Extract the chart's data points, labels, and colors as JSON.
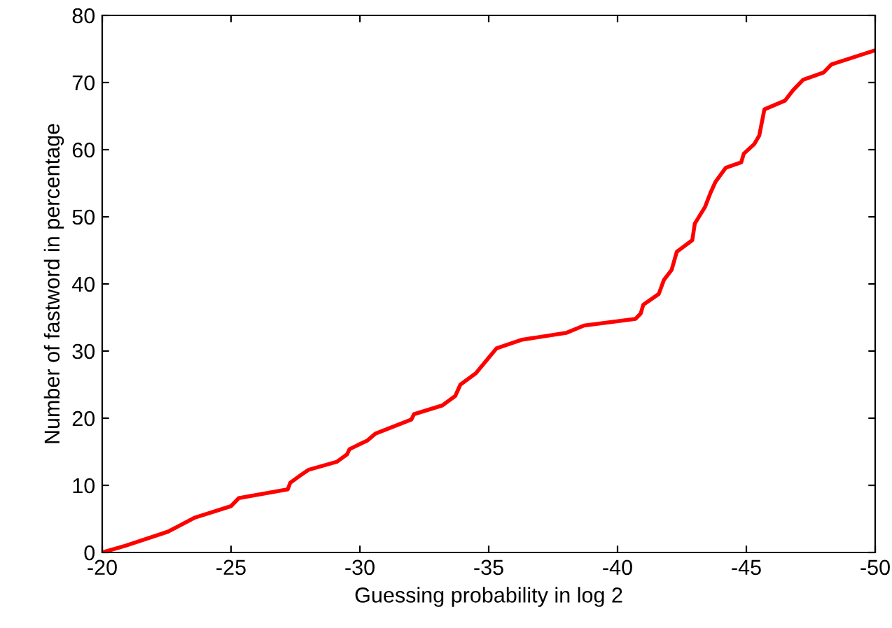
{
  "chart_data": {
    "type": "line",
    "xlabel": "Guessing probability in log 2",
    "ylabel": "Number of fastword in percentage",
    "xlim": [
      -20,
      -50
    ],
    "ylim": [
      0,
      80
    ],
    "xticks": [
      -20,
      -25,
      -30,
      -35,
      -40,
      -45,
      -50
    ],
    "yticks": [
      0,
      10,
      20,
      30,
      40,
      50,
      60,
      70,
      80
    ],
    "grid": false,
    "legend": false,
    "series": [
      {
        "color": "#ff0000",
        "x": [
          -20,
          -20.9,
          -22.55,
          -23.6,
          -25.0,
          -25.3,
          -27.2,
          -27.3,
          -27.7,
          -28.0,
          -29.1,
          -29.5,
          -29.6,
          -30.3,
          -30.6,
          -32.0,
          -32.1,
          -33.2,
          -33.7,
          -33.9,
          -34.5,
          -35.3,
          -36.3,
          -38.0,
          -38.7,
          -40.7,
          -40.9,
          -41.0,
          -41.6,
          -41.8,
          -42.1,
          -42.3,
          -42.9,
          -43.0,
          -43.4,
          -43.6,
          -43.8,
          -44.2,
          -44.8,
          -44.9,
          -45.3,
          -45.5,
          -45.7,
          -46.5,
          -46.8,
          -47.2,
          -48.0,
          -48.3,
          -50
        ],
        "values": [
          0,
          1.0,
          3.1,
          5.2,
          6.9,
          8.1,
          9.4,
          10.4,
          11.5,
          12.3,
          13.5,
          14.6,
          15.4,
          16.7,
          17.7,
          19.8,
          20.6,
          21.9,
          23.3,
          25.0,
          26.7,
          30.4,
          31.7,
          32.7,
          33.8,
          34.8,
          35.6,
          36.9,
          38.5,
          40.6,
          42.1,
          44.8,
          46.5,
          49.0,
          51.5,
          53.5,
          55.2,
          57.3,
          58.1,
          59.4,
          60.8,
          62.1,
          66.0,
          67.3,
          68.8,
          70.4,
          71.5,
          72.7,
          74.8
        ]
      }
    ]
  }
}
